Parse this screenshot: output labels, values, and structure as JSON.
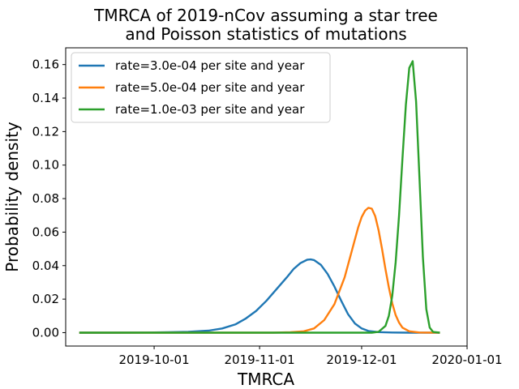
{
  "chart_data": {
    "type": "line",
    "title_lines": [
      "TMRCA of 2019-nCov assuming a star tree",
      "and Poisson statistics of mutations"
    ],
    "xlabel": "TMRCA",
    "ylabel": "Probability density",
    "x_type": "date",
    "xlim": [
      "2019-09-05",
      "2020-01-01"
    ],
    "ylim": [
      -0.008,
      0.17
    ],
    "x_ticks": [
      "2019-10-01",
      "2019-11-01",
      "2019-12-01",
      "2020-01-01"
    ],
    "y_ticks": [
      "0.00",
      "0.02",
      "0.04",
      "0.06",
      "0.08",
      "0.10",
      "0.12",
      "0.14",
      "0.16"
    ],
    "legend_position": "top-left",
    "grid": false,
    "series": [
      {
        "name": "rate=3.0e-04 per site and year",
        "color": "#1f77b4",
        "points": [
          [
            "2019-09-09",
            0.0
          ],
          [
            "2019-09-19",
            0.0
          ],
          [
            "2019-09-29",
            0.0001
          ],
          [
            "2019-10-05",
            0.0002
          ],
          [
            "2019-10-11",
            0.0005
          ],
          [
            "2019-10-17",
            0.0012
          ],
          [
            "2019-10-21",
            0.0025
          ],
          [
            "2019-10-25",
            0.005
          ],
          [
            "2019-10-28",
            0.0085
          ],
          [
            "2019-10-31",
            0.013
          ],
          [
            "2019-11-03",
            0.019
          ],
          [
            "2019-11-06",
            0.026
          ],
          [
            "2019-11-09",
            0.033
          ],
          [
            "2019-11-11",
            0.038
          ],
          [
            "2019-11-13",
            0.0415
          ],
          [
            "2019-11-15",
            0.0435
          ],
          [
            "2019-11-16",
            0.0437
          ],
          [
            "2019-11-17",
            0.0433
          ],
          [
            "2019-11-19",
            0.0405
          ],
          [
            "2019-11-21",
            0.035
          ],
          [
            "2019-11-23",
            0.0275
          ],
          [
            "2019-11-25",
            0.019
          ],
          [
            "2019-11-27",
            0.011
          ],
          [
            "2019-11-29",
            0.0055
          ],
          [
            "2019-12-01",
            0.0025
          ],
          [
            "2019-12-03",
            0.001
          ],
          [
            "2019-12-06",
            0.0003
          ],
          [
            "2019-12-10",
            0.0001
          ],
          [
            "2019-12-15",
            0.0
          ],
          [
            "2019-12-24",
            0.0
          ]
        ]
      },
      {
        "name": "rate=5.0e-04 per site and year",
        "color": "#ff7f0e",
        "points": [
          [
            "2019-09-09",
            0.0
          ],
          [
            "2019-10-15",
            0.0
          ],
          [
            "2019-11-05",
            0.0
          ],
          [
            "2019-11-10",
            0.0002
          ],
          [
            "2019-11-14",
            0.0008
          ],
          [
            "2019-11-17",
            0.0025
          ],
          [
            "2019-11-20",
            0.0075
          ],
          [
            "2019-11-23",
            0.017
          ],
          [
            "2019-11-26",
            0.033
          ],
          [
            "2019-11-28",
            0.048
          ],
          [
            "2019-11-30",
            0.063
          ],
          [
            "2019-12-01",
            0.069
          ],
          [
            "2019-12-02",
            0.0728
          ],
          [
            "2019-12-03",
            0.0745
          ],
          [
            "2019-12-04",
            0.074
          ],
          [
            "2019-12-05",
            0.0695
          ],
          [
            "2019-12-06",
            0.061
          ],
          [
            "2019-12-07",
            0.05
          ],
          [
            "2019-12-08",
            0.038
          ],
          [
            "2019-12-09",
            0.027
          ],
          [
            "2019-12-10",
            0.0175
          ],
          [
            "2019-12-11",
            0.0105
          ],
          [
            "2019-12-12",
            0.006
          ],
          [
            "2019-12-13",
            0.003
          ],
          [
            "2019-12-15",
            0.0008
          ],
          [
            "2019-12-18",
            0.0001
          ],
          [
            "2019-12-24",
            0.0
          ]
        ]
      },
      {
        "name": "rate=1.0e-03 per site and year",
        "color": "#2ca02c",
        "points": [
          [
            "2019-09-09",
            0.0
          ],
          [
            "2019-10-15",
            0.0
          ],
          [
            "2019-11-20",
            0.0
          ],
          [
            "2019-12-04",
            0.0
          ],
          [
            "2019-12-06",
            0.0005
          ],
          [
            "2019-12-08",
            0.004
          ],
          [
            "2019-12-09",
            0.01
          ],
          [
            "2019-12-10",
            0.022
          ],
          [
            "2019-12-11",
            0.042
          ],
          [
            "2019-12-12",
            0.07
          ],
          [
            "2019-12-13",
            0.104
          ],
          [
            "2019-12-14",
            0.136
          ],
          [
            "2019-12-15",
            0.158
          ],
          [
            "2019-12-16",
            0.162
          ],
          [
            "2019-12-17",
            0.138
          ],
          [
            "2019-12-18",
            0.092
          ],
          [
            "2019-12-19",
            0.045
          ],
          [
            "2019-12-20",
            0.014
          ],
          [
            "2019-12-21",
            0.003
          ],
          [
            "2019-12-22",
            0.0004
          ],
          [
            "2019-12-24",
            0.0
          ]
        ]
      }
    ]
  }
}
